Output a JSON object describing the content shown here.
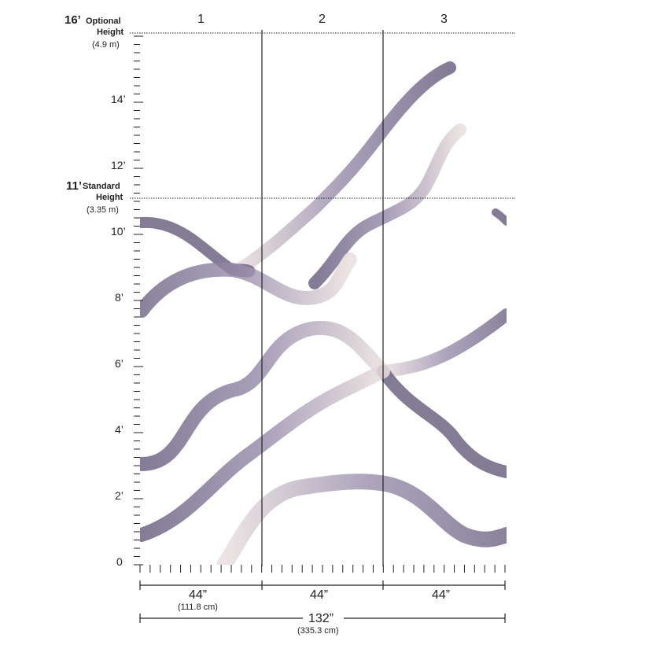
{
  "heights": {
    "optional": {
      "value": "16’",
      "label": "Optional",
      "label2": "Height",
      "metric": "(4.9 m)"
    },
    "standard": {
      "value": "11’",
      "label": "Standard",
      "label2": "Height",
      "metric": "(3.35 m)"
    }
  },
  "y_axis": {
    "ticks": [
      "0",
      "2’",
      "4’",
      "6’",
      "8’",
      "10’",
      "12’",
      "14’"
    ]
  },
  "panels": [
    "1",
    "2",
    "3"
  ],
  "widths": {
    "panel": [
      {
        "label": "44”",
        "metric": "(111.8 cm)"
      },
      {
        "label": "44”",
        "metric": ""
      },
      {
        "label": "44”",
        "metric": ""
      }
    ],
    "total": {
      "label": "132”",
      "metric": "(335.3 cm)"
    }
  },
  "colors": {
    "stroke_dark": "#6e6483",
    "stroke_mid": "#9a8fad",
    "stroke_light": "#e8dedd",
    "line": "#222222"
  }
}
